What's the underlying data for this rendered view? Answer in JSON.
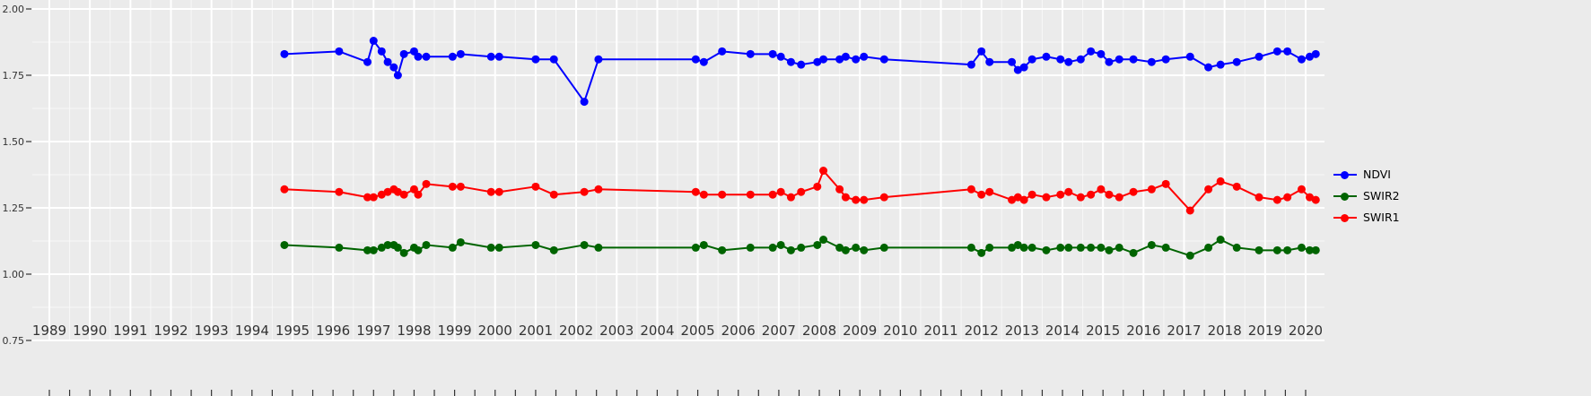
{
  "page": {
    "background": "#ebebeb",
    "gridline_color": "#ffffff",
    "axis_text_color": "#333333"
  },
  "legend": {
    "position": "right",
    "items": [
      {
        "label": "NDVI",
        "color": "#0000ff"
      },
      {
        "label": "SWIR2",
        "color": "#006400"
      },
      {
        "label": "SWIR1",
        "color": "#ff0000"
      }
    ]
  },
  "chart_data": {
    "type": "line",
    "title": "",
    "xlabel": "",
    "ylabel": "",
    "legend_position": "right",
    "grid": true,
    "x_ticks": [
      1989,
      1990,
      1991,
      1992,
      1993,
      1994,
      1995,
      1996,
      1997,
      1998,
      1999,
      2000,
      2001,
      2002,
      2003,
      2004,
      2005,
      2006,
      2007,
      2008,
      2009,
      2010,
      2011,
      2012,
      2013,
      2014,
      2015,
      2016,
      2017,
      2018,
      2019,
      2020
    ],
    "y_ticks": [
      {
        "value": 2.0,
        "label": "2.00"
      },
      {
        "value": 1.75,
        "label": "1.75"
      },
      {
        "value": 1.5,
        "label": "1.50"
      },
      {
        "value": 1.25,
        "label": "1.25"
      },
      {
        "value": 1.0,
        "label": "1.00"
      },
      {
        "value": 0.75,
        "label": "0.75"
      }
    ],
    "y_minor_ticks": [
      1.875,
      1.625,
      1.375,
      1.125,
      0.875
    ],
    "x_minor_step": 0.5,
    "xlim": [
      1988.6,
      2020.5
    ],
    "ylim": [
      0.75,
      2.0
    ],
    "x": [
      1994.8,
      1996.15,
      1996.85,
      1997.0,
      1997.2,
      1997.35,
      1997.5,
      1997.6,
      1997.75,
      1998.0,
      1998.1,
      1998.3,
      1998.95,
      1999.15,
      1999.9,
      2000.1,
      2001.0,
      2001.45,
      2002.2,
      2002.55,
      2004.95,
      2005.15,
      2005.6,
      2006.3,
      2006.85,
      2007.05,
      2007.3,
      2007.55,
      2007.95,
      2008.1,
      2008.5,
      2008.65,
      2008.9,
      2009.1,
      2009.6,
      2011.75,
      2012.0,
      2012.2,
      2012.75,
      2012.9,
      2013.05,
      2013.25,
      2013.6,
      2013.95,
      2014.15,
      2014.45,
      2014.7,
      2014.95,
      2015.15,
      2015.4,
      2015.75,
      2016.2,
      2016.55,
      2017.15,
      2017.6,
      2017.9,
      2018.3,
      2018.85,
      2019.3,
      2019.55,
      2019.9,
      2020.1,
      2020.25
    ],
    "series": [
      {
        "name": "NDVI",
        "color": "#0000ff",
        "values": [
          1.83,
          1.84,
          1.8,
          1.88,
          1.84,
          1.8,
          1.78,
          1.75,
          1.83,
          1.84,
          1.82,
          1.82,
          1.82,
          1.83,
          1.82,
          1.82,
          1.81,
          1.81,
          1.65,
          1.81,
          1.81,
          1.8,
          1.84,
          1.83,
          1.83,
          1.82,
          1.8,
          1.79,
          1.8,
          1.81,
          1.81,
          1.82,
          1.81,
          1.82,
          1.81,
          1.79,
          1.84,
          1.8,
          1.8,
          1.77,
          1.78,
          1.81,
          1.82,
          1.81,
          1.8,
          1.81,
          1.84,
          1.83,
          1.8,
          1.81,
          1.81,
          1.8,
          1.81,
          1.82,
          1.78,
          1.79,
          1.8,
          1.82,
          1.84,
          1.84,
          1.81,
          1.82,
          1.83
        ]
      },
      {
        "name": "SWIR2",
        "color": "#006400",
        "values": [
          1.11,
          1.1,
          1.09,
          1.09,
          1.1,
          1.11,
          1.11,
          1.1,
          1.08,
          1.1,
          1.09,
          1.11,
          1.1,
          1.12,
          1.1,
          1.1,
          1.11,
          1.09,
          1.11,
          1.1,
          1.1,
          1.11,
          1.09,
          1.1,
          1.1,
          1.11,
          1.09,
          1.1,
          1.11,
          1.13,
          1.1,
          1.09,
          1.1,
          1.09,
          1.1,
          1.1,
          1.08,
          1.1,
          1.1,
          1.11,
          1.1,
          1.1,
          1.09,
          1.1,
          1.1,
          1.1,
          1.1,
          1.1,
          1.09,
          1.1,
          1.08,
          1.11,
          1.1,
          1.07,
          1.1,
          1.13,
          1.1,
          1.09,
          1.09,
          1.09,
          1.1,
          1.09,
          1.09
        ]
      },
      {
        "name": "SWIR1",
        "color": "#ff0000",
        "values": [
          1.32,
          1.31,
          1.29,
          1.29,
          1.3,
          1.31,
          1.32,
          1.31,
          1.3,
          1.32,
          1.3,
          1.34,
          1.33,
          1.33,
          1.31,
          1.31,
          1.33,
          1.3,
          1.31,
          1.32,
          1.31,
          1.3,
          1.3,
          1.3,
          1.3,
          1.31,
          1.29,
          1.31,
          1.33,
          1.39,
          1.32,
          1.29,
          1.28,
          1.28,
          1.29,
          1.32,
          1.3,
          1.31,
          1.28,
          1.29,
          1.28,
          1.3,
          1.29,
          1.3,
          1.31,
          1.29,
          1.3,
          1.32,
          1.3,
          1.29,
          1.31,
          1.32,
          1.34,
          1.24,
          1.32,
          1.35,
          1.33,
          1.29,
          1.28,
          1.29,
          1.32,
          1.29,
          1.28
        ]
      }
    ]
  }
}
